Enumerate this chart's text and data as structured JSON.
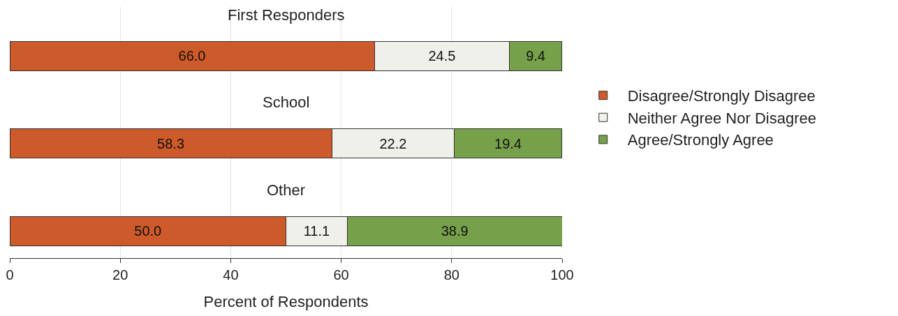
{
  "chart_data": {
    "type": "bar",
    "orientation": "horizontal",
    "stacked": true,
    "categories": [
      "First Responders",
      "School",
      "Other"
    ],
    "xlabel": "Percent of Respondents",
    "xlim": [
      0,
      100
    ],
    "xticks": [
      0,
      20,
      40,
      60,
      80,
      100
    ],
    "grid": "x",
    "legend": "right",
    "series": [
      {
        "name": "Disagree/Strongly Disagree",
        "color": "#cc5a2a",
        "values": [
          66.0,
          58.3,
          50.0
        ],
        "value_labels": [
          "66.0",
          "58.3",
          "50.0"
        ]
      },
      {
        "name": "Neither Agree Nor Disagree",
        "color": "#eff0ea",
        "values": [
          24.5,
          22.2,
          11.1
        ],
        "value_labels": [
          "24.5",
          "22.2",
          "11.1"
        ]
      },
      {
        "name": "Agree/Strongly Agree",
        "color": "#76a04a",
        "values": [
          9.4,
          19.4,
          38.9
        ],
        "value_labels": [
          "9.4",
          "19.4",
          "38.9"
        ]
      }
    ]
  }
}
